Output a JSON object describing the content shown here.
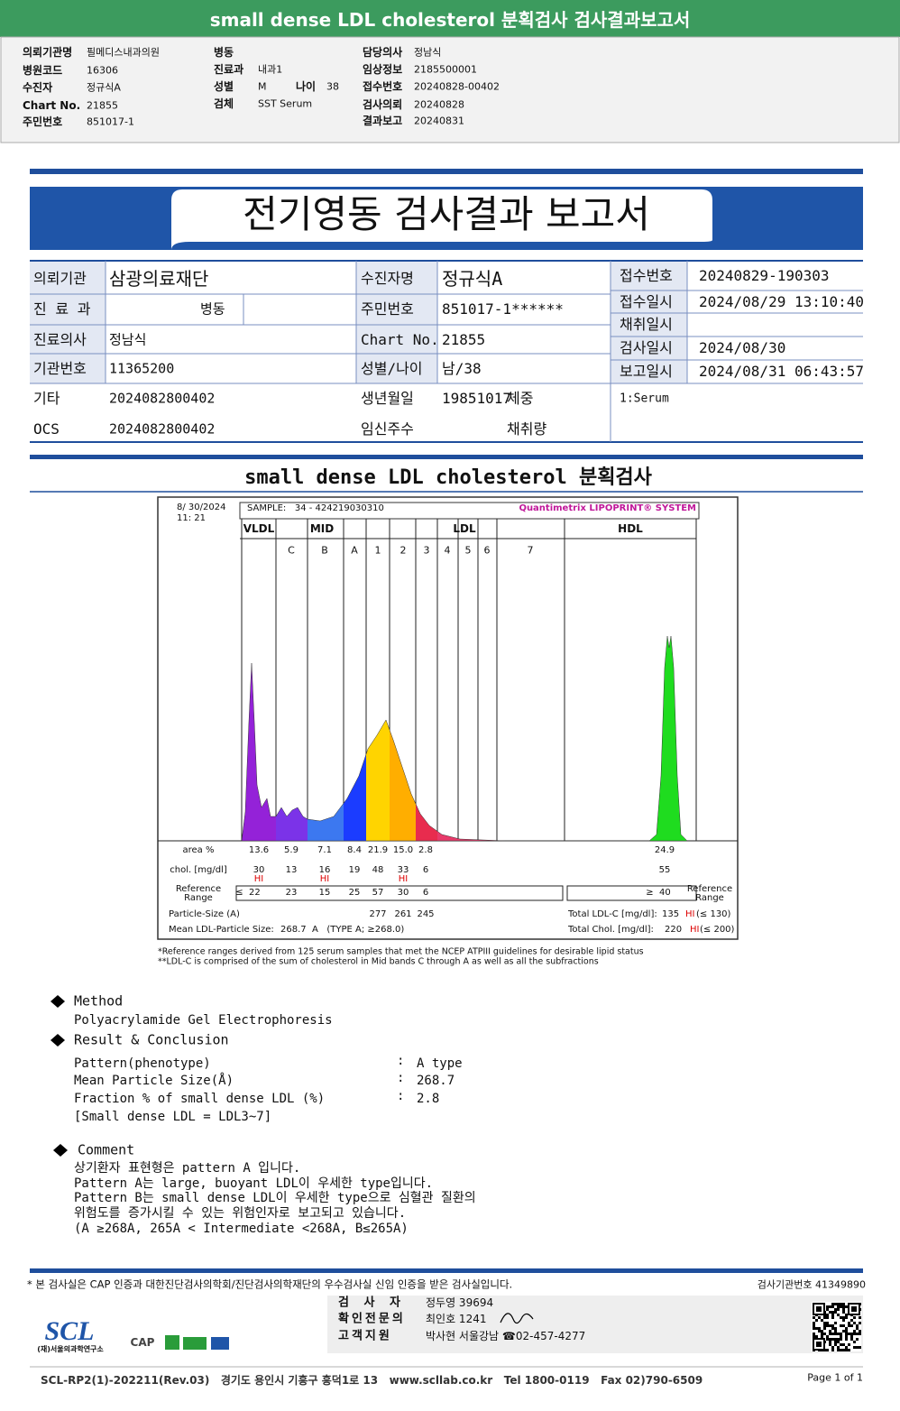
{
  "header": {
    "title": "small dense LDL cholesterol 분획검사 검사결과보고서",
    "fields": [
      {
        "label": "의뢰기관명",
        "value": "필메디스내과의원"
      },
      {
        "label": "병원코드",
        "value": "16306"
      },
      {
        "label": "수진자",
        "value": "정규식A"
      },
      {
        "label": "Chart No.",
        "value": "21855"
      },
      {
        "label": "주민번호",
        "value": "851017-1"
      },
      {
        "label": "병동"
      },
      {
        "label": "진료과",
        "value": "내과1"
      },
      {
        "label": "성별",
        "value": "M"
      },
      {
        "label": "나이",
        "value": "38"
      },
      {
        "label": "검체",
        "value": "SST Serum"
      },
      {
        "label": "담당의사",
        "value": "정남식"
      },
      {
        "label": "임상정보",
        "value": "2185500001"
      },
      {
        "label": "접수번호",
        "value": "20240828-00402"
      },
      {
        "label": "검사의뢰",
        "value": "20240828"
      },
      {
        "label": "결과보고",
        "value": "20240831"
      }
    ]
  },
  "report_title": "전기영동 검사결과 보고서",
  "info": {
    "rows": [
      [
        "의뢰기관",
        "삼광의료재단",
        "수진자명",
        "정규식A"
      ],
      [
        "진 료 과",
        "병동",
        "주민번호",
        "851017-1******"
      ],
      [
        "진료의사",
        "정남식",
        "Chart No.",
        "21855"
      ],
      [
        "기관번호",
        "11365200",
        "성별/나이",
        "남/38"
      ],
      [
        "기타",
        "2024082800402",
        "생년월일",
        "19851017",
        "체중"
      ],
      [
        "OCS",
        "2024082800402",
        "임신주수",
        "채취량"
      ]
    ],
    "side": [
      [
        "접수번호",
        "20240829-190303"
      ],
      [
        "접수일시",
        "2024/08/29 13:10:40"
      ],
      [
        "채취일시"
      ],
      [
        "검사일시",
        "2024/08/30"
      ],
      [
        "보고일시",
        "2024/08/31 06:43:57"
      ]
    ],
    "specimen": "1:Serum"
  },
  "section_title": "small dense LDL cholesterol 분획검사",
  "lipoprint": {
    "date": "8/ 30/2024",
    "time": "11: 21",
    "sample": "SAMPLE:   34 - 424219030310",
    "system": "Quantimetrix LIPOPRINT® SYSTEM",
    "groups": [
      "VLDL",
      "MID",
      "LDL",
      "HDL"
    ],
    "bands": [
      "C",
      "B",
      "A",
      "1",
      "2",
      "3",
      "4",
      "5",
      "6",
      "7"
    ],
    "area_label": "area %",
    "area": [
      "13.6",
      "5.9",
      "7.1",
      "8.4",
      "21.9",
      "15.0",
      "2.8",
      "24.9"
    ],
    "chol_label": "chol. [mg/dl]",
    "chol": [
      "30",
      "13",
      "16",
      "19",
      "48",
      "33",
      "6",
      "55"
    ],
    "flags": [
      "HI",
      null,
      "HI",
      null,
      null,
      "HI",
      null,
      null
    ],
    "reference_label": "Reference Range",
    "reference": [
      "≤  22",
      "23",
      "15",
      "25",
      "57",
      "30",
      "6"
    ],
    "hdl_reference": "≥  40",
    "particle_label": "Particle-Size (A)",
    "particle": [
      "277",
      "261",
      "245"
    ],
    "mean_label": "Mean LDL-Particle Size:",
    "mean_value": "268.7  A   (TYPE A; ≥268.0)",
    "total_ldl_label": "Total LDL-C [mg/dl]:",
    "total_ldl": "135",
    "total_ldl_flag": "HI",
    "total_ldl_ref": "(≤ 130)",
    "total_chol_label": "Total Chol. [mg/dl]:",
    "total_chol": "220",
    "total_chol_flag": "HI",
    "total_chol_ref": "(≤ 200)",
    "footnotes": [
      "*Reference ranges derived from 125 serum samples that met the NCEP ATPIII guidelines for desirable lipid status",
      "**LDL-C is comprised of the sum of cholesterol in Mid bands C through A as well as all the subfractions"
    ]
  },
  "method": {
    "heading": "Method",
    "text": "Polyacrylamide Gel Electrophoresis"
  },
  "result": {
    "heading": "Result & Conclusion",
    "separator": ":",
    "rows": [
      [
        "Pattern(phenotype)",
        "A type"
      ],
      [
        "Mean Particle Size(Å)",
        "268.7"
      ],
      [
        "Fraction % of small dense LDL (%)",
        "2.8"
      ]
    ],
    "note": "[Small dense LDL = LDL3~7]"
  },
  "comment": {
    "heading": "Comment",
    "lines": [
      "상기환자 표현형은 pattern A 입니다.",
      "Pattern A는 large, buoyant LDL이 우세한 type입니다.",
      "Pattern B는 small dense LDL이 우세한 type으로 심혈관 질환의",
      "위험도를 증가시킬 수 있는 위험인자로 보고되고 있습니다.",
      "(A ≥268A, 265A < Intermediate <268A, B≤265A)"
    ]
  },
  "footer": {
    "notice": "* 본 검사실은 CAP 인증과 대한진단검사의학회/진단검사의학재단의 우수검사실 신임 인증을 받은 검사실입니다.",
    "institution_no": "검사기관번호 41349890",
    "staff": [
      [
        "검 사 자",
        "정두영 39694"
      ],
      [
        "확인전문의",
        "최인호 1241"
      ],
      [
        "고객지원",
        "박사현 서울강남 ☎02-457-4277"
      ]
    ],
    "logo": "SCL",
    "logo_sub": "(재)서울의과학연구소",
    "cap": "CAP",
    "bottom": "SCL-RP2(1)-202211(Rev.03)   경기도 용인시 기흥구 흥덕1로 13   www.scllab.co.kr   Tel 1800-0119   Fax 02)790-6509",
    "page": "Page 1 of 1"
  }
}
